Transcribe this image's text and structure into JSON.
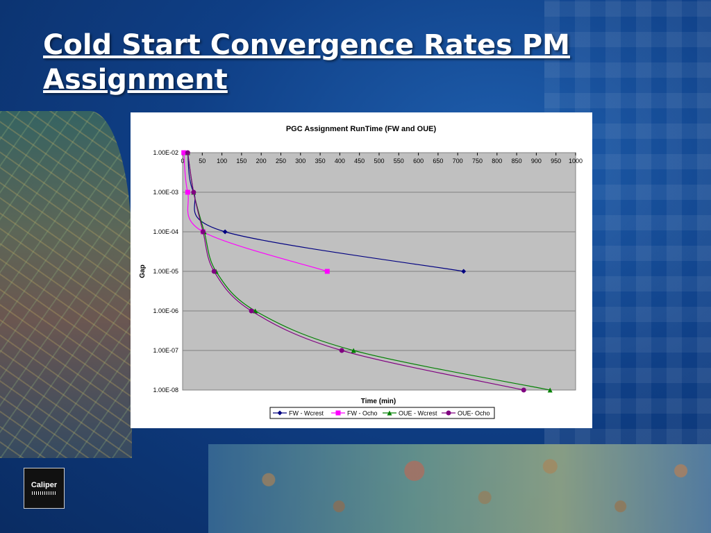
{
  "slide": {
    "title": "Cold Start Convergence Rates PM Assignment"
  },
  "logo": {
    "name": "Caliper",
    "icon": "caliper-logo-icon"
  },
  "colors": {
    "background": "#0f3f86",
    "plot_area": "#c0c0c0",
    "title_text": "#ffffff"
  },
  "chart_data": {
    "type": "scatter",
    "title": "PGC Assignment RunTime (FW and OUE)",
    "xlabel": "Time (min)",
    "ylabel": "Gap",
    "xlim": [
      0,
      1000
    ],
    "ylim": [
      1e-08,
      0.01
    ],
    "y_scale": "log",
    "x_axis_position": "top",
    "x_ticks": [
      0,
      50,
      100,
      150,
      200,
      250,
      300,
      350,
      400,
      450,
      500,
      550,
      600,
      650,
      700,
      750,
      800,
      850,
      900,
      950,
      1000
    ],
    "y_tick_labels": [
      "1.00E-02",
      "1.00E-03",
      "1.00E-04",
      "1.00E-05",
      "1.00E-06",
      "1.00E-07",
      "1.00E-08"
    ],
    "y_ticks": [
      0.01,
      0.001,
      0.0001,
      1e-05,
      1e-06,
      1e-07,
      1e-08
    ],
    "grid": true,
    "legend": "bottom",
    "series": [
      {
        "name": "FW - Wcrest",
        "color": "#000080",
        "marker": "diamond",
        "points": [
          [
            13,
            0.01
          ],
          [
            28,
            0.001
          ],
          [
            108,
            0.0001
          ],
          [
            715,
            1e-05
          ]
        ]
      },
      {
        "name": "FW - Ocho",
        "color": "#ff00ff",
        "marker": "square",
        "points": [
          [
            3,
            0.01
          ],
          [
            13,
            0.001
          ],
          [
            52,
            0.0001
          ],
          [
            368,
            1e-05
          ]
        ]
      },
      {
        "name": "OUE - Wcrest",
        "color": "#008000",
        "marker": "triangle",
        "points": [
          [
            13,
            0.01
          ],
          [
            28,
            0.001
          ],
          [
            55,
            0.0001
          ],
          [
            85,
            1e-05
          ],
          [
            185,
            1e-06
          ],
          [
            435,
            1e-07
          ],
          [
            935,
            1e-08
          ]
        ]
      },
      {
        "name": "OUE- Ocho",
        "color": "#800080",
        "marker": "circle",
        "points": [
          [
            13,
            0.01
          ],
          [
            28,
            0.001
          ],
          [
            52,
            0.0001
          ],
          [
            80,
            1e-05
          ],
          [
            175,
            1e-06
          ],
          [
            405,
            1e-07
          ],
          [
            868,
            1e-08
          ]
        ]
      }
    ]
  }
}
